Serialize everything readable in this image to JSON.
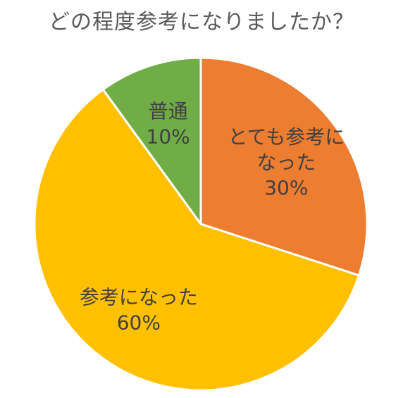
{
  "chart_data": {
    "type": "pie",
    "title": "どの程度参考になりましたか？",
    "start_angle_deg": 0,
    "direction": "clockwise",
    "slices": [
      {
        "label_lines": [
          "とても参考に",
          "なった"
        ],
        "value": 30,
        "value_label": "30%",
        "color": "#ED7D31"
      },
      {
        "label_lines": [
          "参考になった"
        ],
        "value": 60,
        "value_label": "60%",
        "color": "#FFC000"
      },
      {
        "label_lines": [
          "普通"
        ],
        "value": 10,
        "value_label": "10%",
        "color": "#70AD47"
      }
    ],
    "slice_border_color": "#FFFFFF",
    "legend": "none"
  }
}
